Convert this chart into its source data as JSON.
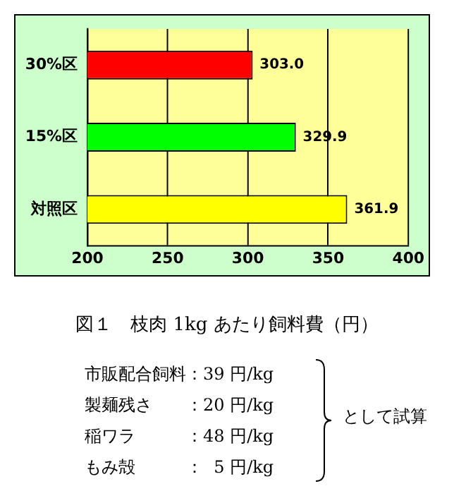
{
  "chart_data": {
    "type": "bar",
    "orientation": "horizontal",
    "title": "図１　枝肉 1kg あたり飼料費（円）",
    "categories": [
      "30%区",
      "15%区",
      "対照区"
    ],
    "values": [
      303.0,
      329.9,
      361.9
    ],
    "colors": [
      "#ff0000",
      "#00ff00",
      "#ffff00"
    ],
    "value_labels": [
      "303.0",
      "329.9",
      "361.9"
    ],
    "xlim": [
      200,
      400
    ],
    "xticks": [
      200,
      250,
      300,
      350,
      400
    ],
    "grid": "x",
    "annotations": [
      "市販配合飼料：39 円/kg",
      "製麺残さ　　：20 円/kg",
      "稲ワラ　　　：48 円/kg",
      "もみ殻　　　：  5 円/kg",
      "として試算"
    ]
  }
}
